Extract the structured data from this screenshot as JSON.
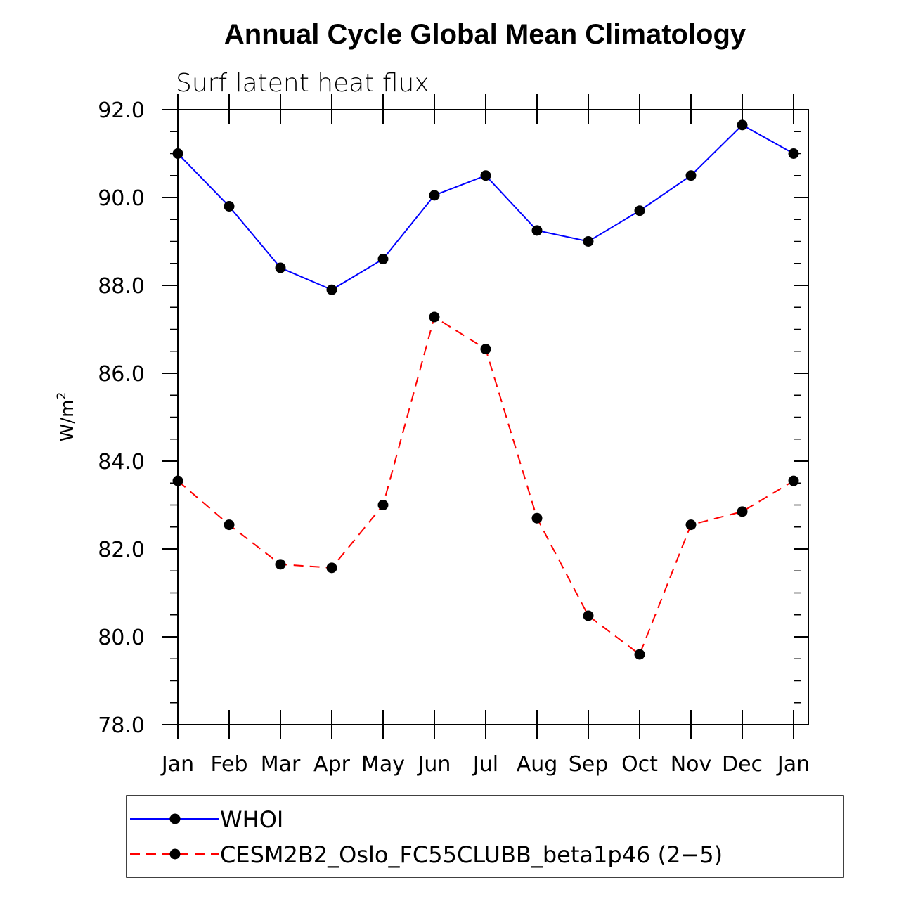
{
  "chart_data": {
    "type": "line",
    "title": "Annual Cycle Global Mean Climatology",
    "subtitle": "Surf latent heat flux",
    "ylabel": "W/m",
    "ylabel_sup": "2",
    "xlabel": "",
    "categories": [
      "Jan",
      "Feb",
      "Mar",
      "Apr",
      "May",
      "Jun",
      "Jul",
      "Aug",
      "Sep",
      "Oct",
      "Nov",
      "Dec",
      "Jan"
    ],
    "ylim": [
      78.0,
      92.0
    ],
    "yticks": [
      "78.0",
      "80.0",
      "82.0",
      "84.0",
      "86.0",
      "88.0",
      "90.0",
      "92.0"
    ],
    "series": [
      {
        "name": "WHOI",
        "color": "#0000ff",
        "dash": "solid",
        "values": [
          91.0,
          89.8,
          88.4,
          87.9,
          88.6,
          90.05,
          90.5,
          89.25,
          89.0,
          89.7,
          90.5,
          91.65,
          91.0
        ]
      },
      {
        "name": "CESM2B2_Oslo_FC55CLUBB_beta1p46 (2−5)",
        "color": "#ff0000",
        "dash": "dashed",
        "values": [
          83.55,
          82.55,
          81.65,
          81.57,
          83.0,
          87.28,
          86.55,
          82.7,
          80.48,
          79.6,
          82.55,
          82.85,
          83.55
        ]
      }
    ],
    "legend_position": "bottom"
  }
}
